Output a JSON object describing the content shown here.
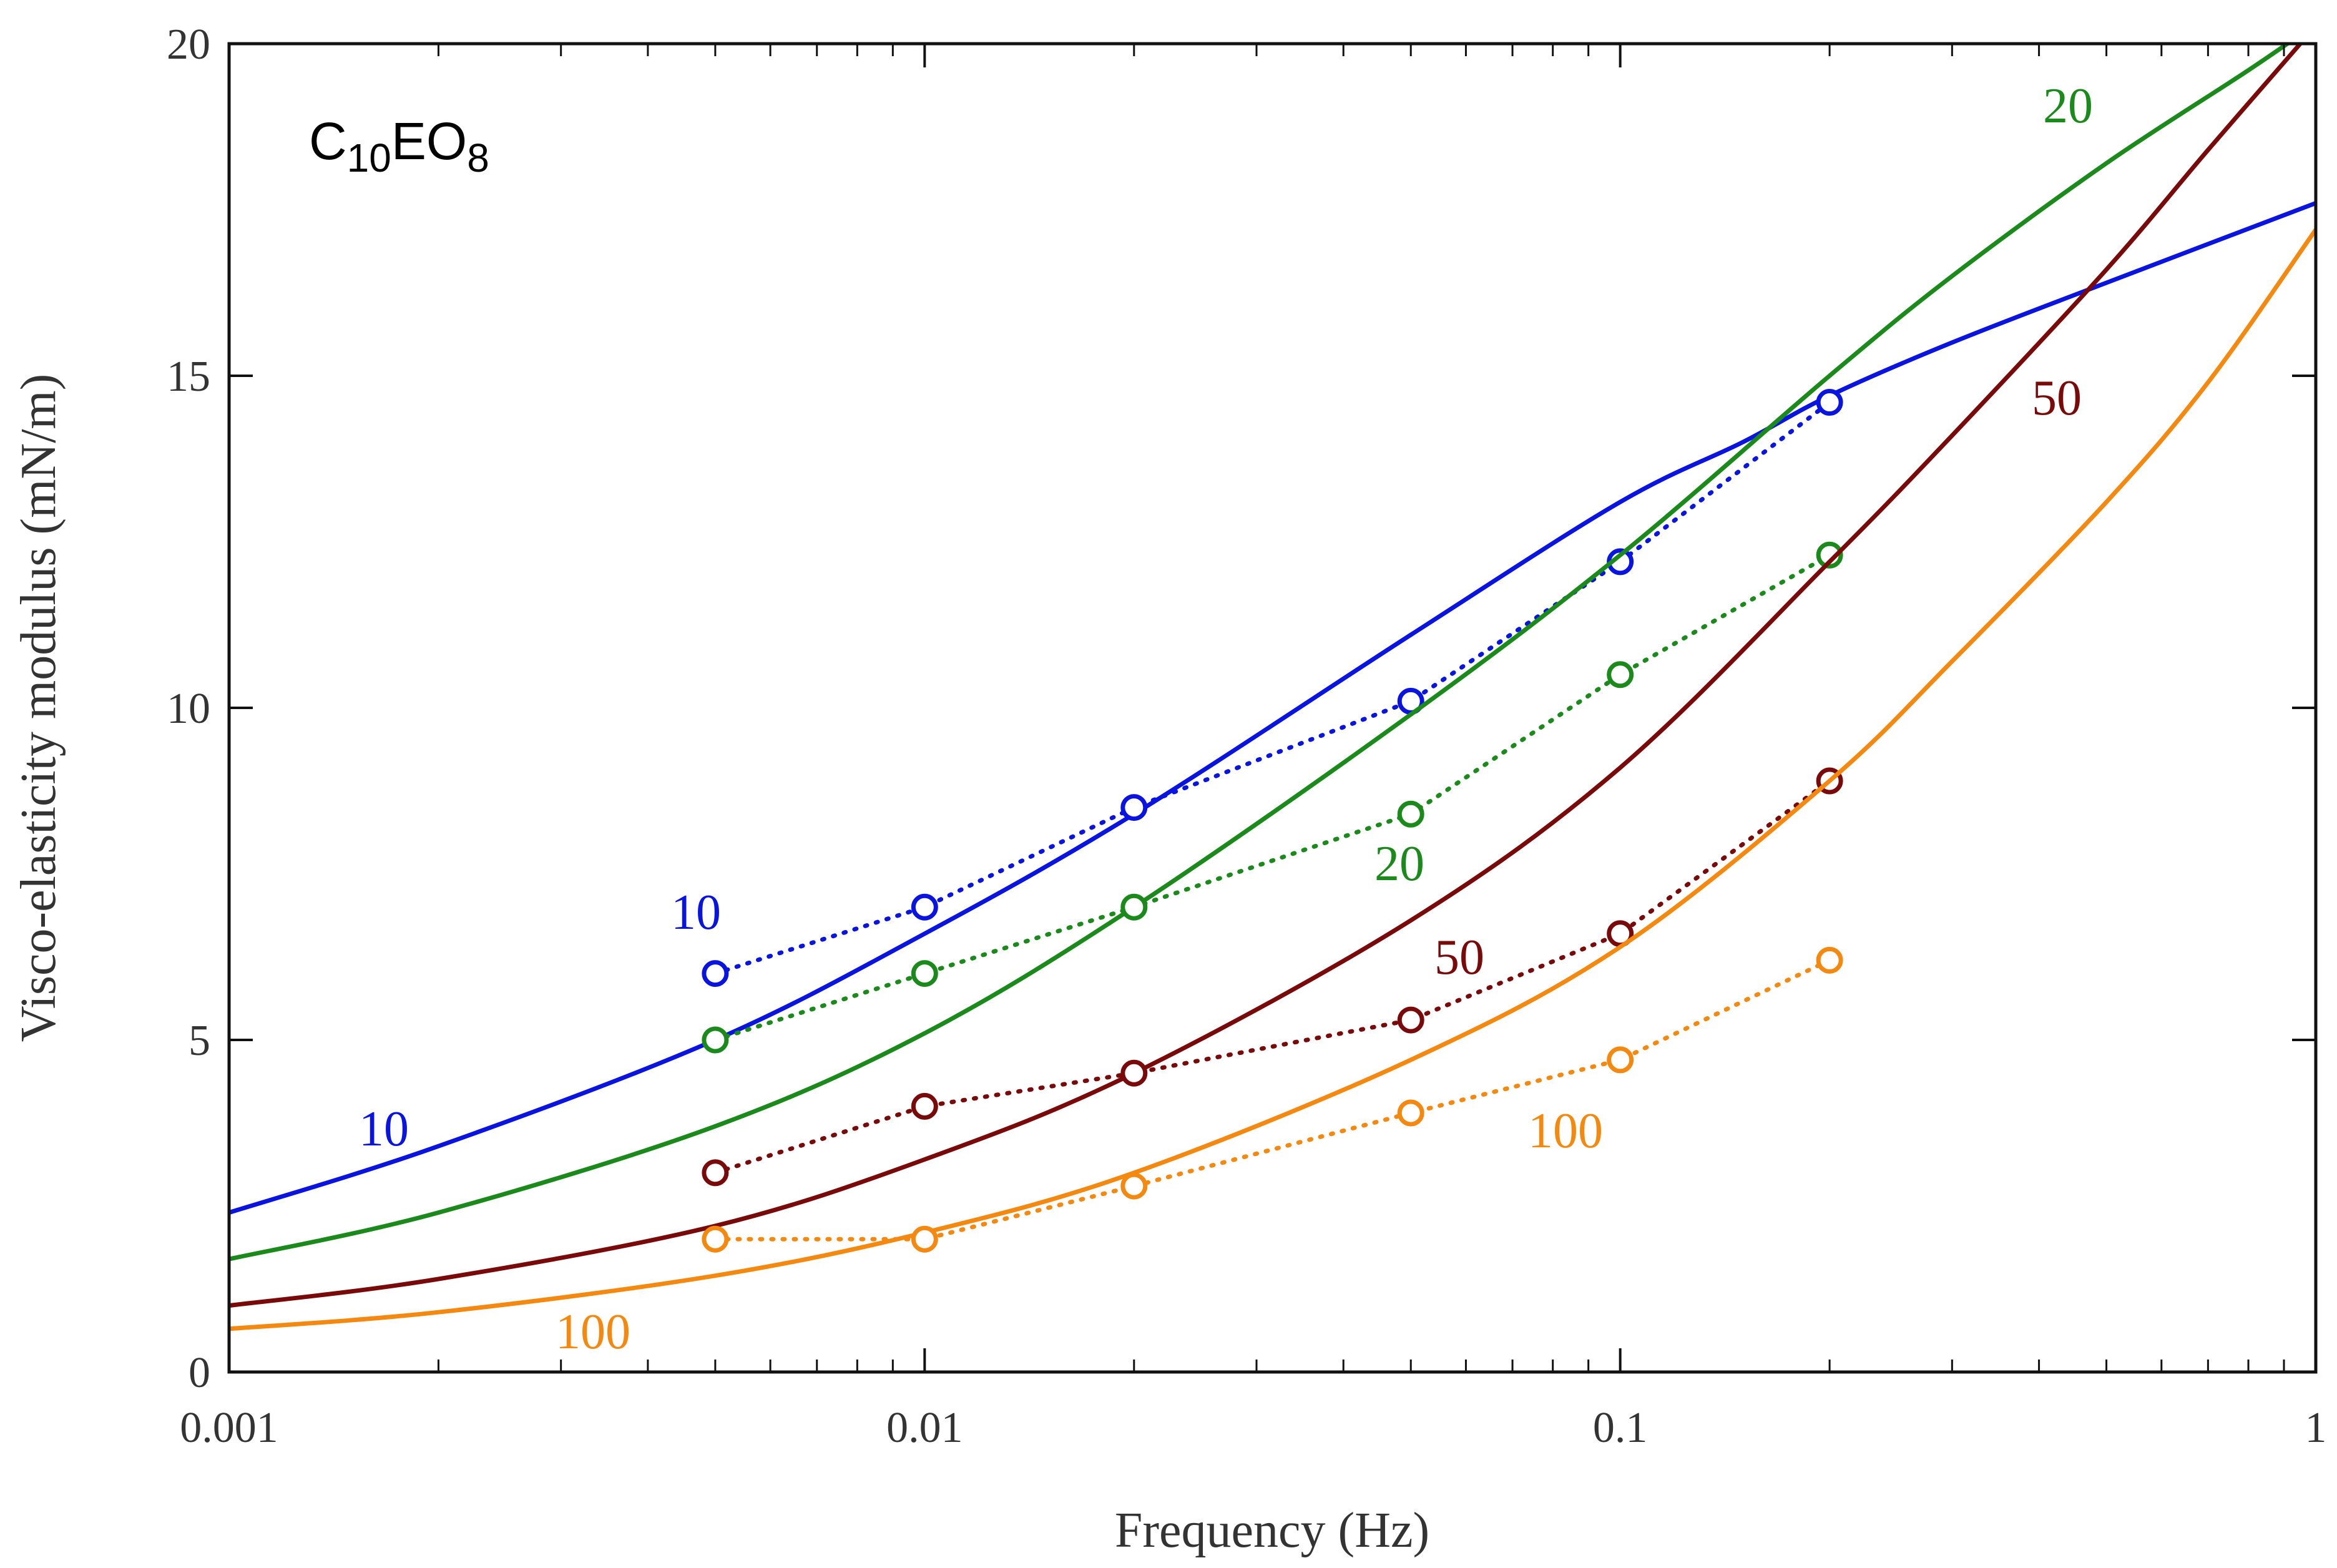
{
  "chart_data": {
    "type": "line",
    "title": "",
    "xlabel": "Frequency (Hz)",
    "ylabel": "Visco-elasticity modulus (mN/m)",
    "xscale": "log",
    "xlim": [
      0.001,
      1
    ],
    "ylim": [
      0,
      20
    ],
    "grid": false,
    "x_ticks": [
      {
        "value": 0.001,
        "label": "0.001"
      },
      {
        "value": 0.01,
        "label": "0.01"
      },
      {
        "value": 0.1,
        "label": "0.1"
      },
      {
        "value": 1,
        "label": "1"
      }
    ],
    "y_ticks": [
      {
        "value": 0,
        "label": "0"
      },
      {
        "value": 5,
        "label": "5"
      },
      {
        "value": 10,
        "label": "10"
      },
      {
        "value": 15,
        "label": "15"
      },
      {
        "value": 20,
        "label": "20"
      }
    ],
    "annotation": {
      "base": "C",
      "sub1": "10",
      "mid": "EO",
      "sub2": "8"
    },
    "series": [
      {
        "name": "10",
        "color": "#0a14e0",
        "model": {
          "x": [
            0.001,
            0.002,
            0.005,
            0.01,
            0.02,
            0.05,
            0.1,
            0.15,
            0.2,
            0.3,
            0.5,
            1
          ],
          "y": [
            2.4,
            3.4,
            5.0,
            6.6,
            8.4,
            11.1,
            13.1,
            14.0,
            14.7,
            15.5,
            16.4,
            17.6
          ]
        },
        "measured": {
          "x": [
            0.005,
            0.01,
            0.02,
            0.05,
            0.1,
            0.2
          ],
          "y": [
            6.0,
            7.0,
            8.5,
            10.1,
            12.2,
            14.6
          ]
        },
        "model_label": "10",
        "measured_label": "10"
      },
      {
        "name": "20",
        "color": "#1a8a1a",
        "model": {
          "x": [
            0.001,
            0.002,
            0.005,
            0.01,
            0.02,
            0.05,
            0.1,
            0.2,
            0.3,
            0.5,
            0.8,
            1
          ],
          "y": [
            1.7,
            2.4,
            3.7,
            5.1,
            7.0,
            9.9,
            12.3,
            15.0,
            16.5,
            18.2,
            19.6,
            20.3
          ]
        },
        "measured": {
          "x": [
            0.005,
            0.01,
            0.02,
            0.05,
            0.1,
            0.2
          ],
          "y": [
            5.0,
            6.0,
            7.0,
            8.4,
            10.5,
            12.3
          ]
        },
        "model_label": "20",
        "measured_label": "20"
      },
      {
        "name": "50",
        "color": "#7a0a0a",
        "model": {
          "x": [
            0.001,
            0.002,
            0.005,
            0.01,
            0.02,
            0.05,
            0.1,
            0.2,
            0.3,
            0.5,
            0.7,
            0.95
          ],
          "y": [
            1.0,
            1.4,
            2.2,
            3.2,
            4.5,
            6.8,
            9.1,
            12.2,
            14.1,
            16.6,
            18.4,
            20.0
          ]
        },
        "measured": {
          "x": [
            0.005,
            0.01,
            0.02,
            0.05,
            0.1,
            0.2
          ],
          "y": [
            3.0,
            4.0,
            4.5,
            5.3,
            6.6,
            8.9
          ]
        },
        "model_label": "50",
        "measured_label": "50"
      },
      {
        "name": "100",
        "color": "#f5890f",
        "model": {
          "x": [
            0.001,
            0.002,
            0.005,
            0.01,
            0.02,
            0.05,
            0.1,
            0.2,
            0.3,
            0.5,
            0.7,
            1
          ],
          "y": [
            0.65,
            0.9,
            1.45,
            2.1,
            3.0,
            4.7,
            6.4,
            8.9,
            10.7,
            13.1,
            14.9,
            17.2
          ]
        },
        "measured": {
          "x": [
            0.005,
            0.01,
            0.02,
            0.05,
            0.1,
            0.2
          ],
          "y": [
            2.0,
            2.0,
            2.8,
            3.9,
            4.7,
            6.2
          ]
        },
        "model_label": "100",
        "measured_label": "100"
      }
    ]
  }
}
